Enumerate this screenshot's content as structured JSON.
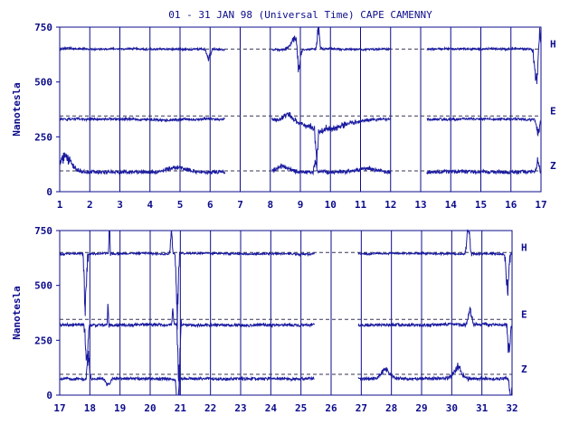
{
  "header": {
    "title": "01 - 31 JAN 98 (Universal Time) CAPE CAMENNY"
  },
  "colors": {
    "trace": "#1a1aa0",
    "axis": "#0c0c8c",
    "text": "#0c0c8c"
  },
  "chart_data": [
    {
      "type": "line",
      "title": "01 - 31 JAN 98 (Universal Time) CAPE CAMENNY",
      "ylabel": "Nanotesla",
      "xlim": [
        1,
        17
      ],
      "ylim": [
        0,
        750
      ],
      "x_ticks": [
        "1",
        "2",
        "3",
        "4",
        "5",
        "6",
        "7",
        "8",
        "9",
        "10",
        "11",
        "12",
        "13",
        "14",
        "15",
        "16",
        "17"
      ],
      "y_ticks": [
        "0",
        "250",
        "500",
        "750"
      ],
      "baselines": {
        "H": 650,
        "E": 345,
        "Z": 95
      },
      "gaps": [
        [
          6.5,
          8.05
        ],
        [
          12.0,
          13.2
        ]
      ],
      "series": [
        {
          "name": "H",
          "label": "H",
          "base": 650,
          "noise": 4,
          "spikes": [
            {
              "x": 5.95,
              "amp": -40,
              "w": 0.08
            },
            {
              "x": 8.8,
              "amp": 50,
              "w": 0.15
            },
            {
              "x": 8.95,
              "amp": -110,
              "w": 0.06
            },
            {
              "x": 9.6,
              "amp": 90,
              "w": 0.05
            },
            {
              "x": 16.85,
              "amp": -150,
              "w": 0.08
            },
            {
              "x": 16.95,
              "amp": 90,
              "w": 0.05
            }
          ]
        },
        {
          "name": "E",
          "label": "E",
          "base": 330,
          "noise": 5,
          "spikes": [
            {
              "x": 8.6,
              "amp": 30,
              "w": 0.2
            },
            {
              "x": 9.55,
              "amp": -140,
              "w": 0.05
            },
            {
              "x": 9.8,
              "amp": -45,
              "w": 0.9
            },
            {
              "x": 16.9,
              "amp": -70,
              "w": 0.06
            }
          ]
        },
        {
          "name": "Z",
          "label": "Z",
          "base": 90,
          "noise": 8,
          "spikes": [
            {
              "x": 1.2,
              "amp": 70,
              "w": 0.25
            },
            {
              "x": 4.9,
              "amp": 20,
              "w": 0.5
            },
            {
              "x": 8.4,
              "amp": 25,
              "w": 0.3
            },
            {
              "x": 9.5,
              "amp": 50,
              "w": 0.05
            },
            {
              "x": 11.2,
              "amp": 15,
              "w": 0.4
            },
            {
              "x": 16.9,
              "amp": 50,
              "w": 0.05
            }
          ]
        }
      ]
    },
    {
      "type": "line",
      "ylabel": "Nanotesla",
      "xlim": [
        17,
        32
      ],
      "ylim": [
        0,
        750
      ],
      "x_ticks": [
        "17",
        "18",
        "19",
        "20",
        "21",
        "22",
        "23",
        "24",
        "25",
        "26",
        "27",
        "28",
        "29",
        "30",
        "31",
        "32"
      ],
      "y_ticks": [
        "0",
        "250",
        "500",
        "750"
      ],
      "baselines": {
        "H": 650,
        "E": 345,
        "Z": 95
      },
      "gaps": [
        [
          25.45,
          26.9
        ]
      ],
      "series": [
        {
          "name": "H",
          "label": "H",
          "base": 645,
          "noise": 4,
          "spikes": [
            {
              "x": 17.85,
              "amp": -230,
              "w": 0.05
            },
            {
              "x": 18.65,
              "amp": 150,
              "w": 0.02
            },
            {
              "x": 20.7,
              "amp": 120,
              "w": 0.03
            },
            {
              "x": 20.9,
              "amp": -300,
              "w": 0.04
            },
            {
              "x": 30.55,
              "amp": 120,
              "w": 0.06
            },
            {
              "x": 31.85,
              "amp": -200,
              "w": 0.05
            }
          ]
        },
        {
          "name": "E",
          "label": "E",
          "base": 320,
          "noise": 6,
          "spikes": [
            {
              "x": 17.9,
              "amp": -180,
              "w": 0.05
            },
            {
              "x": 18.6,
              "amp": 100,
              "w": 0.02
            },
            {
              "x": 20.75,
              "amp": 70,
              "w": 0.03
            },
            {
              "x": 20.95,
              "amp": -300,
              "w": 0.04
            },
            {
              "x": 30.6,
              "amp": 70,
              "w": 0.08
            },
            {
              "x": 31.9,
              "amp": -120,
              "w": 0.05
            }
          ]
        },
        {
          "name": "Z",
          "label": "Z",
          "base": 75,
          "noise": 6,
          "spikes": [
            {
              "x": 17.95,
              "amp": 110,
              "w": 0.05
            },
            {
              "x": 18.6,
              "amp": -30,
              "w": 0.1
            },
            {
              "x": 20.9,
              "amp": -140,
              "w": 0.04
            },
            {
              "x": 27.8,
              "amp": 40,
              "w": 0.2
            },
            {
              "x": 30.2,
              "amp": 50,
              "w": 0.2
            },
            {
              "x": 31.95,
              "amp": -80,
              "w": 0.05
            }
          ]
        }
      ]
    }
  ]
}
